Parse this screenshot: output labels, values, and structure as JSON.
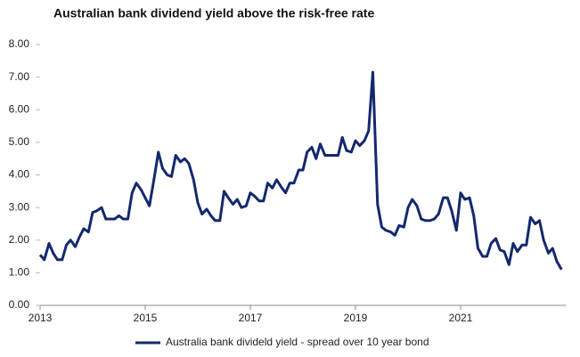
{
  "chart_data": {
    "type": "line",
    "title": "Australian bank dividend yield above the risk-free rate",
    "x": [
      2013,
      2013.08,
      2013.17,
      2013.25,
      2013.33,
      2013.42,
      2013.5,
      2013.58,
      2013.67,
      2013.75,
      2013.83,
      2013.92,
      2014,
      2014.08,
      2014.17,
      2014.25,
      2014.33,
      2014.42,
      2014.5,
      2014.58,
      2014.67,
      2014.75,
      2014.83,
      2014.92,
      2015,
      2015.08,
      2015.17,
      2015.25,
      2015.33,
      2015.42,
      2015.5,
      2015.58,
      2015.67,
      2015.75,
      2015.83,
      2015.92,
      2016,
      2016.08,
      2016.17,
      2016.25,
      2016.33,
      2016.42,
      2016.5,
      2016.58,
      2016.67,
      2016.75,
      2016.83,
      2016.92,
      2017,
      2017.08,
      2017.17,
      2017.25,
      2017.33,
      2017.42,
      2017.5,
      2017.58,
      2017.67,
      2017.75,
      2017.83,
      2017.92,
      2018,
      2018.08,
      2018.17,
      2018.25,
      2018.33,
      2018.42,
      2018.5,
      2018.58,
      2018.67,
      2018.75,
      2018.83,
      2018.92,
      2019,
      2019.08,
      2019.17,
      2019.25,
      2019.33,
      2019.42,
      2019.5,
      2019.58,
      2019.67,
      2019.75,
      2019.83,
      2019.92,
      2020,
      2020.08,
      2020.17,
      2020.25,
      2020.33,
      2020.42,
      2020.5,
      2020.58,
      2020.67,
      2020.75,
      2020.83,
      2020.92,
      2021,
      2021.08,
      2021.17,
      2021.25,
      2021.33,
      2021.42,
      2021.5,
      2021.58,
      2021.67,
      2021.75,
      2021.83,
      2021.92,
      2022,
      2022.08,
      2022.17,
      2022.25,
      2022.33,
      2022.42,
      2022.5,
      2022.58,
      2022.67,
      2022.75,
      2022.83,
      2022.92
    ],
    "series": [
      {
        "name": "Australia bank divideld yield - spread over 10 year bond",
        "color": "#14286e",
        "values": [
          1.55,
          1.4,
          1.9,
          1.6,
          1.4,
          1.4,
          1.85,
          2.0,
          1.8,
          2.1,
          2.35,
          2.25,
          2.85,
          2.9,
          3.0,
          2.65,
          2.65,
          2.65,
          2.75,
          2.65,
          2.65,
          3.45,
          3.75,
          3.55,
          3.3,
          3.05,
          3.9,
          4.7,
          4.2,
          4.0,
          3.95,
          4.6,
          4.4,
          4.5,
          4.35,
          3.85,
          3.15,
          2.8,
          2.95,
          2.75,
          2.6,
          2.6,
          3.5,
          3.3,
          3.1,
          3.25,
          3.0,
          3.05,
          3.45,
          3.35,
          3.2,
          3.2,
          3.75,
          3.6,
          3.85,
          3.65,
          3.45,
          3.75,
          3.75,
          4.15,
          4.15,
          4.7,
          4.85,
          4.5,
          4.95,
          4.6,
          4.6,
          4.6,
          4.6,
          5.15,
          4.75,
          4.7,
          5.05,
          4.9,
          5.05,
          5.35,
          7.15,
          3.1,
          2.4,
          2.3,
          2.25,
          2.15,
          2.45,
          2.4,
          3.0,
          3.25,
          3.05,
          2.65,
          2.6,
          2.6,
          2.65,
          2.8,
          3.3,
          3.3,
          2.9,
          2.3,
          3.45,
          3.25,
          3.3,
          2.75,
          1.75,
          1.5,
          1.5,
          1.9,
          2.05,
          1.7,
          1.65,
          1.25,
          1.9,
          1.65,
          1.85,
          1.85,
          2.7,
          2.5,
          2.6,
          2.0,
          1.6,
          1.75,
          1.35,
          1.1
        ]
      }
    ],
    "xlim": [
      2013,
      2023
    ],
    "xticks": [
      2013,
      2015,
      2017,
      2019,
      2021
    ],
    "ylim": [
      0,
      8
    ],
    "yticks": [
      {
        "value": 0,
        "label": "0.00"
      },
      {
        "value": 1,
        "label": "1.00"
      },
      {
        "value": 2,
        "label": "2.00"
      },
      {
        "value": 3,
        "label": "3.00"
      },
      {
        "value": 4,
        "label": "4.00"
      },
      {
        "value": 5,
        "label": "5.00"
      },
      {
        "value": 6,
        "label": "6.00"
      },
      {
        "value": 7,
        "label": "7.00"
      },
      {
        "value": 8,
        "label": "8.00"
      }
    ],
    "legend": "bottom"
  }
}
